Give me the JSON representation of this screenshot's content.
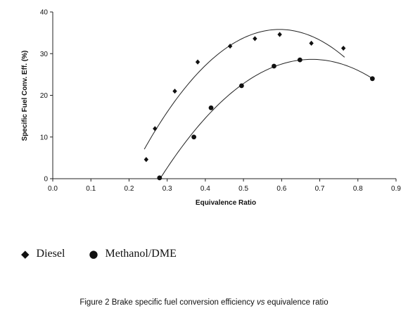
{
  "chart_data": {
    "type": "scatter",
    "xlabel": "Equivalence Ratio",
    "ylabel": "Specific Fuel Conv. Eff. (%)",
    "xlim": [
      0.0,
      0.9
    ],
    "ylim": [
      0,
      40
    ],
    "x_ticks": [
      "0.0",
      "0.1",
      "0.2",
      "0.3",
      "0.4",
      "0.5",
      "0.6",
      "0.7",
      "0.8",
      "0.9"
    ],
    "y_ticks": [
      "0",
      "10",
      "20",
      "30",
      "40"
    ],
    "grid": false,
    "legend_position": "bottom-left",
    "series": [
      {
        "name": "Diesel",
        "marker": "diamond",
        "x": [
          0.245,
          0.268,
          0.32,
          0.38,
          0.465,
          0.53,
          0.595,
          0.678,
          0.762
        ],
        "y": [
          4.6,
          12.0,
          21.0,
          28.0,
          31.8,
          33.6,
          34.6,
          32.5,
          31.3
        ],
        "trendline": "quadratic",
        "trend_range": [
          0.24,
          0.765
        ]
      },
      {
        "name": "Methanol/DME",
        "marker": "circle",
        "x": [
          0.28,
          0.37,
          0.415,
          0.495,
          0.58,
          0.648,
          0.838
        ],
        "y": [
          0.2,
          10.0,
          17.0,
          22.3,
          27.0,
          28.5,
          24.0
        ],
        "trendline": "quadratic",
        "trend_range": [
          0.28,
          0.84
        ]
      }
    ]
  },
  "legend": {
    "diesel_label": "Diesel",
    "methanol_label": "Methanol/DME"
  },
  "caption": {
    "prefix": "Figure 2  Brake specific fuel conversion efficiency ",
    "italic": "vs",
    "suffix": " equivalence ratio"
  }
}
